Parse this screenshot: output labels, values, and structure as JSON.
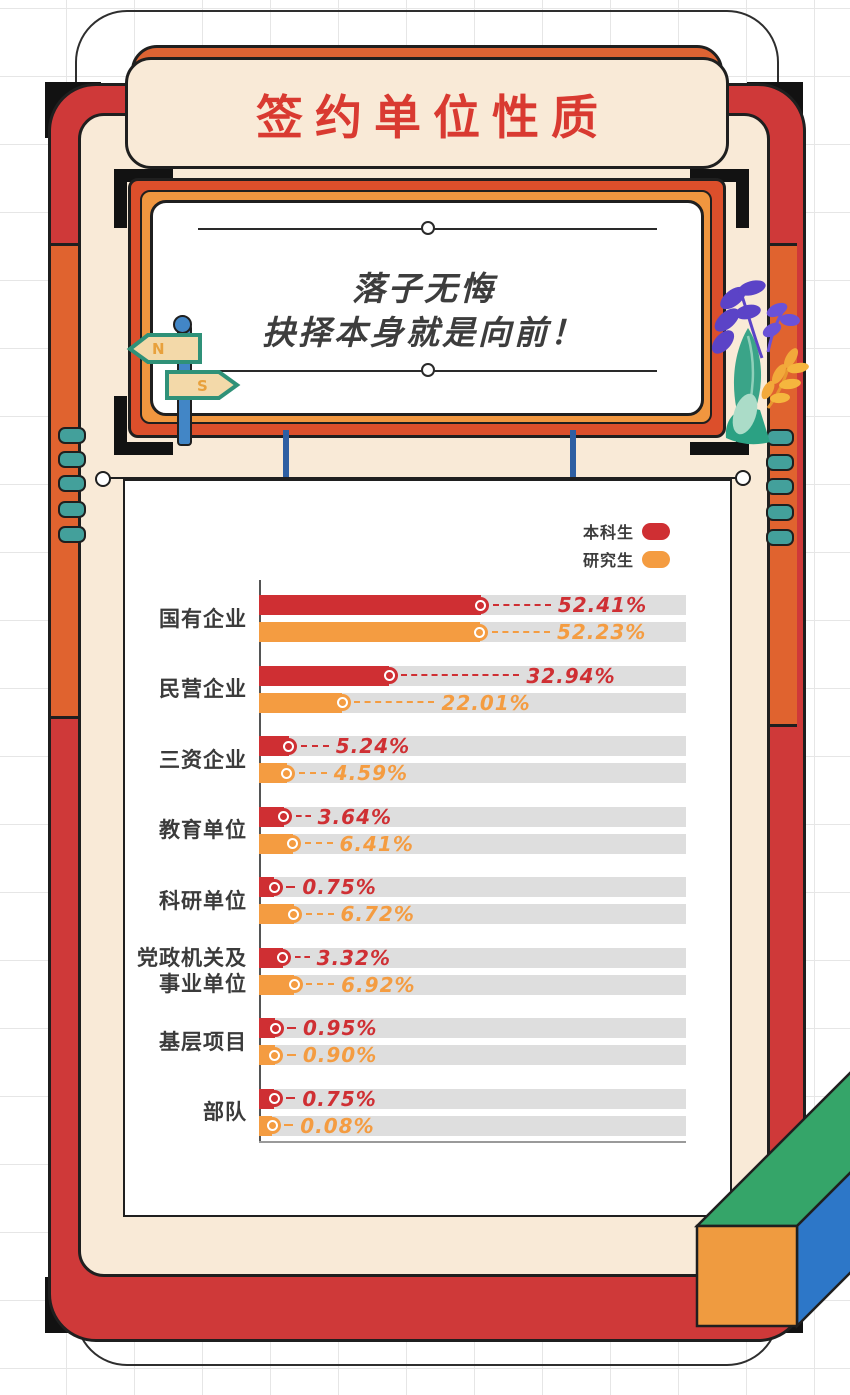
{
  "poster": {
    "title": "签约单位性质",
    "quote_line1": "落子无悔",
    "quote_line2": "抉择本身就是向前！",
    "signpost_n": "N",
    "signpost_s": "S"
  },
  "legend": [
    {
      "label": "本科生",
      "color": "#cf2f33"
    },
    {
      "label": "研究生",
      "color": "#f49c41"
    }
  ],
  "chart_data": {
    "type": "bar",
    "orientation": "horizontal",
    "title": "签约单位性质",
    "value_unit": "percent",
    "categories": [
      "国有企业",
      "民营企业",
      "三资企业",
      "教育单位",
      "科研单位",
      "党政机关及事业单位",
      "基层项目",
      "部队"
    ],
    "category_lines": [
      [
        "国有企业"
      ],
      [
        "民营企业"
      ],
      [
        "三资企业"
      ],
      [
        "教育单位"
      ],
      [
        "科研单位"
      ],
      [
        "党政机关及",
        "事业单位"
      ],
      [
        "基层项目"
      ],
      [
        "部队"
      ]
    ],
    "series": [
      {
        "name": "本科生",
        "color": "#cf2f33",
        "values": [
          52.41,
          32.94,
          5.24,
          3.64,
          0.75,
          3.32,
          0.95,
          0.75
        ],
        "labels": [
          "52.41%",
          "32.94%",
          "5.24%",
          "3.64%",
          "0.75%",
          "3.32%",
          "0.95%",
          "0.75%"
        ]
      },
      {
        "name": "研究生",
        "color": "#f49c41",
        "values": [
          52.23,
          22.01,
          4.59,
          6.41,
          6.72,
          6.92,
          0.9,
          0.08
        ],
        "labels": [
          "52.23%",
          "22.01%",
          "4.59%",
          "6.41%",
          "6.72%",
          "6.92%",
          "0.90%",
          "0.08%"
        ]
      }
    ],
    "track_color": "#dedede",
    "legend_position": "top-right",
    "grid": false
  },
  "palette": {
    "frame_red": "#cf3939",
    "frame_orange": "#e0632f",
    "cream": "#f9ead7",
    "title_red": "#d93a31",
    "quote_orange": "#dc4f2b",
    "quote_band": "#f0963f",
    "teal_notch": "#43a09b",
    "string_blue": "#2e5fa3",
    "cube_green": "#35a569",
    "cube_blue": "#2d77c8",
    "cube_orange": "#ef9b40"
  }
}
